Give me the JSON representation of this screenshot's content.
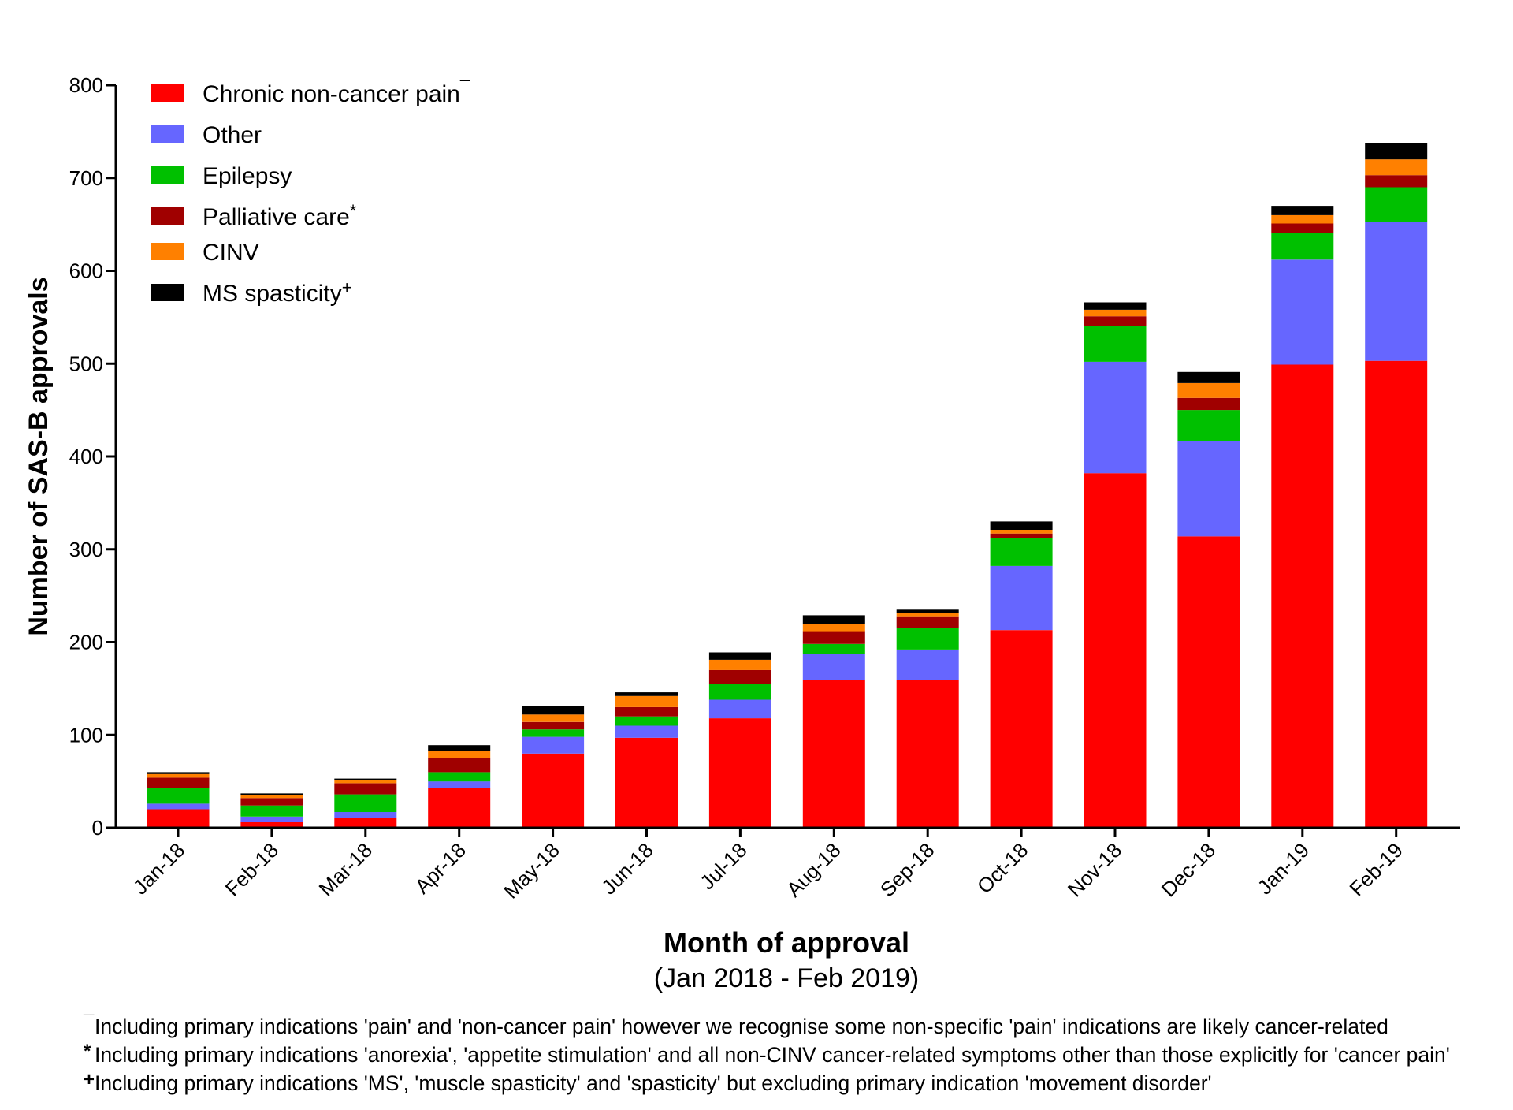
{
  "chart_data": {
    "type": "bar",
    "stacked": true,
    "xlabel": "Month of approval",
    "xlabel_sub": "(Jan 2018 - Feb 2019)",
    "ylabel": "Number of SAS-B approvals",
    "ylim": [
      0,
      800
    ],
    "yticks": [
      0,
      100,
      200,
      300,
      400,
      500,
      600,
      700,
      800
    ],
    "categories": [
      "Jan-18",
      "Feb-18",
      "Mar-18",
      "Apr-18",
      "May-18",
      "Jun-18",
      "Jul-18",
      "Aug-18",
      "Sep-18",
      "Oct-18",
      "Nov-18",
      "Dec-18",
      "Jan-19",
      "Feb-19"
    ],
    "legend_position": "top-left",
    "grid": false,
    "series": [
      {
        "name": "Chronic non-cancer pain",
        "marker": "¯",
        "color": "#ff0000",
        "values": [
          20,
          6,
          11,
          43,
          80,
          97,
          118,
          159,
          159,
          213,
          382,
          314,
          499,
          503
        ]
      },
      {
        "name": "Other",
        "marker": "",
        "color": "#6666ff",
        "values": [
          6,
          6,
          6,
          7,
          18,
          13,
          20,
          28,
          33,
          69,
          120,
          103,
          113,
          150
        ]
      },
      {
        "name": "Epilepsy",
        "marker": "",
        "color": "#00c000",
        "values": [
          17,
          12,
          19,
          10,
          8,
          10,
          17,
          11,
          23,
          30,
          39,
          33,
          29,
          37
        ]
      },
      {
        "name": "Palliative care",
        "marker": "*",
        "color": "#a00000",
        "values": [
          11,
          8,
          12,
          15,
          8,
          10,
          15,
          13,
          12,
          5,
          10,
          13,
          10,
          13
        ]
      },
      {
        "name": "CINV",
        "marker": "",
        "color": "#ff8000",
        "values": [
          4,
          3,
          3,
          8,
          8,
          12,
          11,
          9,
          4,
          4,
          7,
          16,
          9,
          17
        ]
      },
      {
        "name": "MS spasticity",
        "marker": "+",
        "color": "#000000",
        "values": [
          2,
          2,
          2,
          6,
          9,
          4,
          8,
          9,
          4,
          9,
          8,
          12,
          10,
          18
        ]
      }
    ],
    "footnotes": [
      {
        "marker": "¯",
        "text": "Including primary indications 'pain' and 'non-cancer pain' however we recognise some non-specific 'pain' indications are likely cancer-related"
      },
      {
        "marker": "*",
        "text": "Including primary indications 'anorexia', 'appetite stimulation' and all non-CINV cancer-related symptoms other than those explicitly for 'cancer pain'"
      },
      {
        "marker": "+",
        "text": "Including primary indications 'MS', 'muscle spasticity' and 'spasticity' but excluding primary indication 'movement disorder'"
      }
    ]
  }
}
